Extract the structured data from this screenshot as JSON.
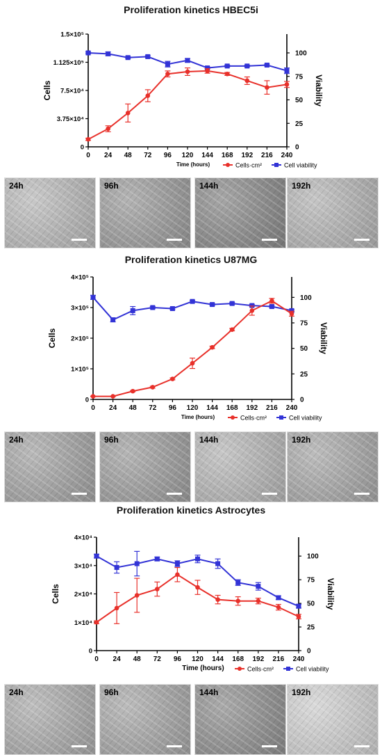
{
  "chart_data": [
    {
      "type": "line",
      "title": "Proliferation kinetics HBEC5i",
      "xlabel": "Time (hours)",
      "ylabel_left": "Cells",
      "ylabel_right": "Viability",
      "x": [
        0,
        24,
        48,
        72,
        96,
        120,
        144,
        168,
        192,
        216,
        240
      ],
      "x_ticks": [
        "0",
        "24",
        "48",
        "72",
        "96",
        "120",
        "144",
        "168",
        "192",
        "216",
        "240"
      ],
      "ylim_left": [
        0,
        150000
      ],
      "yticks_left": [
        "0",
        "3.75×10⁴",
        "7.5×10⁴",
        "1.125×10⁵",
        "1.5×10⁵"
      ],
      "ylim_right": [
        0,
        120
      ],
      "yticks_right": [
        "0",
        "25",
        "50",
        "75",
        "100"
      ],
      "legend": [
        "Cells·cm²",
        "Cell viability"
      ],
      "legend_position": "bottom-right",
      "series": [
        {
          "name": "Cells·cm²",
          "axis": "left",
          "color": "#e8302a",
          "values": [
            10000,
            24000,
            45000,
            68000,
            97000,
            100000,
            101000,
            97000,
            88000,
            79000,
            83000
          ],
          "errors": [
            1500,
            4000,
            12000,
            8000,
            4000,
            5000,
            3000,
            2000,
            5000,
            9000,
            4000
          ]
        },
        {
          "name": "Cell viability",
          "axis": "right",
          "color": "#3233d6",
          "values": [
            100,
            99,
            95,
            96,
            88,
            92,
            84,
            86,
            86,
            87,
            81
          ],
          "errors": [
            1,
            2,
            1,
            1,
            3,
            2,
            1,
            1,
            1,
            1,
            3
          ]
        }
      ]
    },
    {
      "type": "line",
      "title": "Proliferation kinetics U87MG",
      "xlabel": "Time (hours)",
      "ylabel_left": "Cells",
      "ylabel_right": "Viability",
      "x": [
        0,
        24,
        48,
        72,
        96,
        120,
        144,
        168,
        192,
        216,
        240
      ],
      "x_ticks": [
        "0",
        "24",
        "48",
        "72",
        "96",
        "120",
        "144",
        "168",
        "192",
        "216",
        "240"
      ],
      "ylim_left": [
        0,
        400000
      ],
      "yticks_left": [
        "0",
        "1×10⁵",
        "2×10⁵",
        "3×10⁵",
        "4×10⁵"
      ],
      "ylim_right": [
        0,
        120
      ],
      "yticks_right": [
        "0",
        "25",
        "50",
        "75",
        "100"
      ],
      "legend": [
        "Cells·cm²",
        "Cell viability"
      ],
      "legend_position": "bottom-right",
      "series": [
        {
          "name": "Cells·cm²",
          "axis": "left",
          "color": "#e8302a",
          "values": [
            10000,
            10000,
            27000,
            40000,
            67000,
            118000,
            170000,
            228000,
            290000,
            322000,
            280000
          ],
          "errors": [
            1000,
            1000,
            2000,
            3000,
            3000,
            17000,
            4000,
            4000,
            15000,
            8000,
            8000
          ]
        },
        {
          "name": "Cell viability",
          "axis": "right",
          "color": "#3233d6",
          "values": [
            100,
            78,
            87,
            90,
            89,
            96,
            93,
            94,
            92,
            91,
            87
          ],
          "errors": [
            2,
            2,
            4,
            1,
            1,
            1,
            1,
            1,
            1,
            1,
            1
          ]
        }
      ]
    },
    {
      "type": "line",
      "title": "Proliferation kinetics Astrocytes",
      "xlabel": "Time (hours)",
      "ylabel_left": "Cells",
      "ylabel_right": "Viability",
      "x": [
        0,
        24,
        48,
        72,
        96,
        120,
        144,
        168,
        192,
        216,
        240
      ],
      "x_ticks": [
        "0",
        "24",
        "48",
        "72",
        "96",
        "120",
        "144",
        "168",
        "192",
        "216",
        "240"
      ],
      "ylim_left": [
        0,
        40000
      ],
      "yticks_left": [
        "0",
        "1×10⁴",
        "2×10⁴",
        "3×10⁴",
        "4×10⁴"
      ],
      "ylim_right": [
        0,
        120
      ],
      "yticks_right": [
        "0",
        "25",
        "50",
        "75",
        "100"
      ],
      "legend": [
        "Cells·cm²",
        "Cell viability"
      ],
      "legend_position": "bottom-right",
      "series": [
        {
          "name": "Cells·cm²",
          "axis": "left",
          "color": "#e8302a",
          "values": [
            10000,
            15000,
            19500,
            21700,
            26800,
            22300,
            18000,
            17500,
            17500,
            15300,
            12000
          ],
          "errors": [
            500,
            5500,
            6000,
            2500,
            2500,
            2500,
            1500,
            1500,
            1000,
            1000,
            800
          ]
        },
        {
          "name": "Cell viability",
          "axis": "right",
          "color": "#3233d6",
          "values": [
            100,
            88,
            92,
            97,
            92,
            97,
            92,
            72,
            68,
            56,
            47
          ],
          "errors": [
            2,
            6,
            13,
            2,
            3,
            4,
            5,
            3,
            4,
            2,
            2
          ]
        }
      ]
    }
  ],
  "micrographs": [
    {
      "panel": "HBEC5i",
      "labels": [
        "24h",
        "96h",
        "144h",
        "192h"
      ],
      "tones": [
        "#b7b7b7",
        "#9a9a9a",
        "#888888",
        "#b2b2b2"
      ]
    },
    {
      "panel": "U87MG",
      "labels": [
        "24h",
        "96h",
        "144h",
        "192h"
      ],
      "tones": [
        "#a2a2a2",
        "#9c9c9c",
        "#b4b4b4",
        "#a6a6a6"
      ]
    },
    {
      "panel": "Astrocytes",
      "labels": [
        "24h",
        "96h",
        "144h",
        "192h"
      ],
      "tones": [
        "#a9a9a9",
        "#a5a5a5",
        "#8e8e8e",
        "#cdcdcd"
      ]
    }
  ]
}
